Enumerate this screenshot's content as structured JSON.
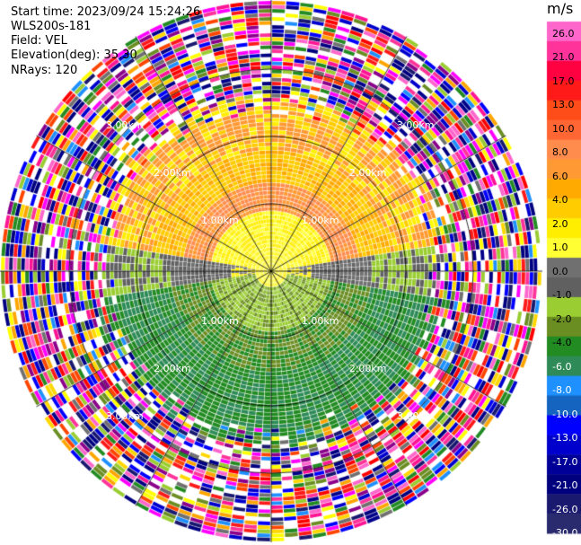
{
  "header": {
    "start_time": "Start time: 2023/09/24 15:24:26",
    "instrument": "WLS200s-181",
    "field": "Field: VEL",
    "elevation": "Elevation(deg): 35.30",
    "nrays": "NRays: 120"
  },
  "chart_data": {
    "type": "heatmap",
    "subtype": "ppi-polar",
    "field": "VEL",
    "units": "m/s",
    "nrays": 120,
    "range_rings_km": [
      1.0,
      2.0,
      3.0
    ],
    "range_labels": [
      "1.00km",
      "2.00km",
      "3.00km"
    ],
    "radial_lines_every_deg": 30,
    "colorbar": {
      "title": "m/s",
      "ticks": [
        "26.0",
        "21.0",
        "17.0",
        "13.0",
        "10.0",
        "8.0",
        "6.0",
        "4.0",
        "2.0",
        "1.0",
        "0.0",
        "-1.0",
        "-2.0",
        "-4.0",
        "-6.0",
        "-8.0",
        "-10.0",
        "-13.0",
        "-17.0",
        "-21.0",
        "-26.0",
        "-30.0"
      ],
      "colors": [
        "#ff66cc",
        "#ff3399",
        "#ff0040",
        "#ff1a1a",
        "#ff4d1a",
        "#ff6633",
        "#ff8c4d",
        "#ff9933",
        "#ffaa00",
        "#ffcc00",
        "#ffee00",
        "#ffff33",
        "#707070",
        "#606060",
        "#9acd32",
        "#6b8e23",
        "#228b22",
        "#2e8b57",
        "#1e90ff",
        "#1565c0",
        "#0000ff",
        "#0000cd",
        "#000099",
        "#00007f",
        "#191970",
        "#2a2a6e"
      ]
    },
    "inner_pattern": {
      "description_axis": "radial range in km",
      "zones": [
        {
          "range_km": [
            0.0,
            0.3
          ],
          "value": 2.0
        },
        {
          "range_km": [
            0.3,
            2.0
          ],
          "dominant_north": 4.0,
          "dominant_south": -4.0
        },
        {
          "range_km": [
            2.0,
            3.0
          ],
          "value": "noise"
        }
      ]
    }
  }
}
